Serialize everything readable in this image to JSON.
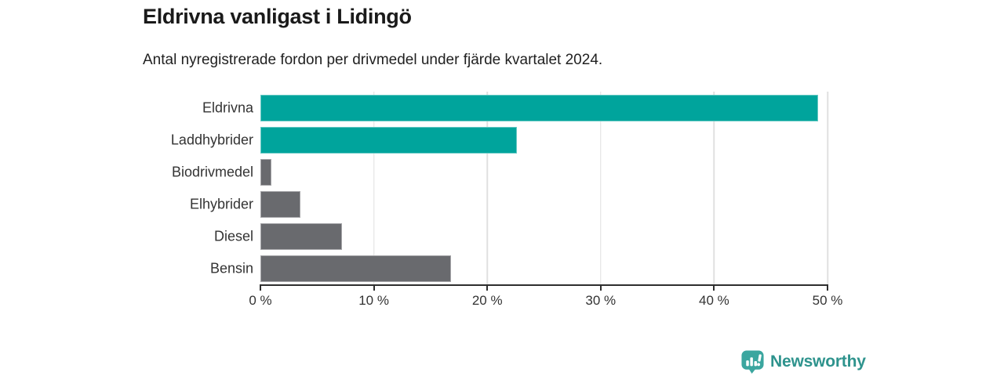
{
  "header": {
    "title": "Eldrivna vanligast i Lidingö",
    "subtitle": "Antal nyregistrerade fordon per drivmedel under fjärde kvartalet 2024."
  },
  "chart_data": {
    "type": "bar",
    "orientation": "horizontal",
    "title": "Eldrivna vanligast i Lidingö",
    "subtitle": "Antal nyregistrerade fordon per drivmedel under fjärde kvartalet 2024.",
    "categories": [
      "Eldrivna",
      "Laddhybrider",
      "Biodrivmedel",
      "Elhybrider",
      "Diesel",
      "Bensin"
    ],
    "values": [
      49.2,
      22.6,
      1.0,
      3.5,
      7.2,
      16.8
    ],
    "unit": "%",
    "bar_colors": [
      "#00a49c",
      "#00a49c",
      "#696a6e",
      "#696a6e",
      "#696a6e",
      "#696a6e"
    ],
    "xlabel": "",
    "ylabel": "",
    "xlim": [
      0,
      50
    ],
    "x_ticks": [
      0,
      10,
      20,
      30,
      40,
      50
    ],
    "x_tick_labels": [
      "0 %",
      "10 %",
      "20 %",
      "30 %",
      "40 %",
      "50 %"
    ],
    "grid": "vertical-only",
    "legend": "none"
  },
  "colors": {
    "accent_teal": "#00a49c",
    "bar_gray": "#696a6e",
    "gridline": "#e0e0e0",
    "axis": "#2e2e2e",
    "title_text": "#1a1a1a",
    "logo_icon_teal": "#3ba69f",
    "logo_text_teal": "#2e938d"
  },
  "footer": {
    "brand": "Newsworthy",
    "logo_icon": "newsworthy-barchart-pin-icon"
  }
}
